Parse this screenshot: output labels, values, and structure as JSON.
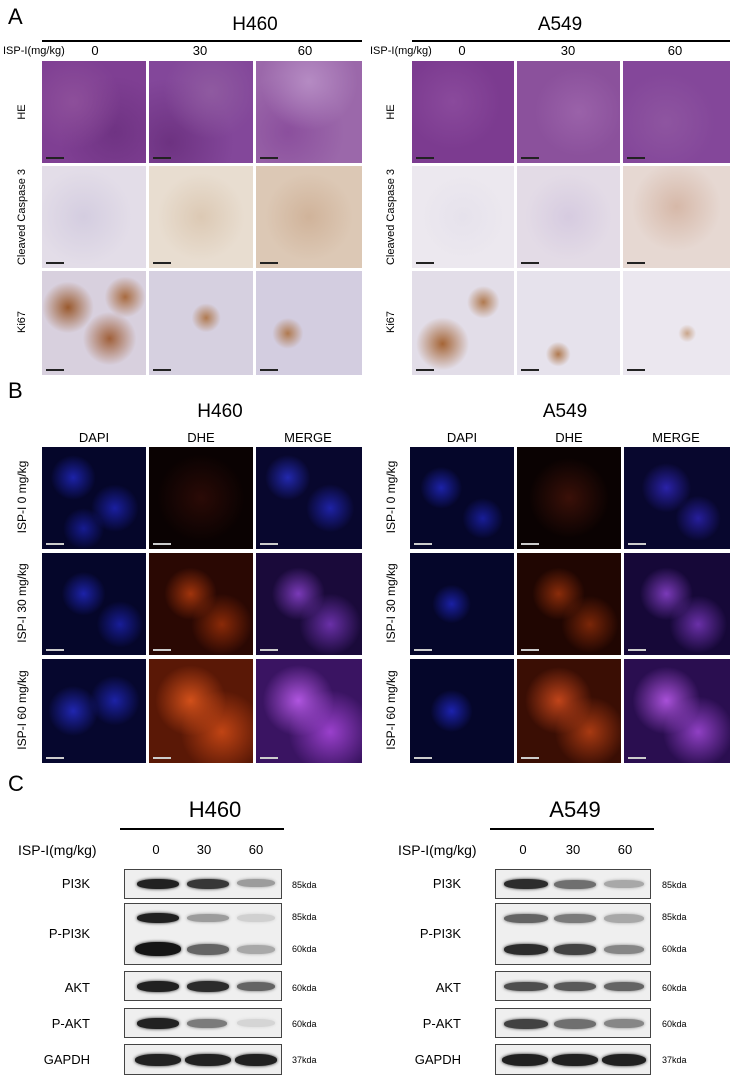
{
  "panel_a": {
    "letter": "A",
    "left": {
      "title": "H460",
      "dose_label": "ISP-I(mg/kg)",
      "doses": [
        "0",
        "30",
        "60"
      ]
    },
    "right": {
      "title": "A549",
      "dose_label": "ISP-I(mg/kg)",
      "doses": [
        "0",
        "30",
        "60"
      ]
    },
    "rows": [
      "HE",
      "Cleaved Caspase 3",
      "Ki67"
    ]
  },
  "panel_b": {
    "letter": "B",
    "left": {
      "title": "H460",
      "channels": [
        "DAPI",
        "DHE",
        "MERGE"
      ]
    },
    "right": {
      "title": "A549",
      "channels": [
        "DAPI",
        "DHE",
        "MERGE"
      ]
    },
    "rows": [
      "ISP-I 0 mg/kg",
      "ISP-I 30 mg/kg",
      "ISP-I 60 mg/kg"
    ]
  },
  "panel_c": {
    "letter": "C",
    "left": {
      "title": "H460",
      "dose_label": "ISP-I(mg/kg)",
      "doses": [
        "0",
        "30",
        "60"
      ]
    },
    "right": {
      "title": "A549",
      "dose_label": "ISP-I(mg/kg)",
      "doses": [
        "0",
        "30",
        "60"
      ]
    },
    "blots": [
      {
        "label": "PI3K",
        "sizes": [
          "85kda"
        ]
      },
      {
        "label": "P-PI3K",
        "sizes": [
          "85kda",
          "60kda"
        ]
      },
      {
        "label": "AKT",
        "sizes": [
          "60kda"
        ]
      },
      {
        "label": "P-AKT",
        "sizes": [
          "60kda"
        ]
      },
      {
        "label": "GAPDH",
        "sizes": [
          "37kda"
        ]
      }
    ],
    "intensity": {
      "h460": {
        "PI3K": [
          0.9,
          0.8,
          0.35
        ],
        "P-PI3K-85": [
          0.9,
          0.35,
          0.12
        ],
        "P-PI3K-60": [
          0.95,
          0.6,
          0.3
        ],
        "AKT": [
          0.9,
          0.85,
          0.6
        ],
        "P-AKT": [
          0.9,
          0.5,
          0.1
        ],
        "GAPDH": [
          0.9,
          0.9,
          0.9
        ]
      },
      "a549": {
        "PI3K": [
          0.85,
          0.55,
          0.3
        ],
        "P-PI3K-85": [
          0.6,
          0.5,
          0.3
        ],
        "P-PI3K-60": [
          0.85,
          0.75,
          0.45
        ],
        "AKT": [
          0.7,
          0.65,
          0.6
        ],
        "P-AKT": [
          0.75,
          0.55,
          0.45
        ],
        "GAPDH": [
          0.9,
          0.9,
          0.9
        ]
      }
    }
  }
}
